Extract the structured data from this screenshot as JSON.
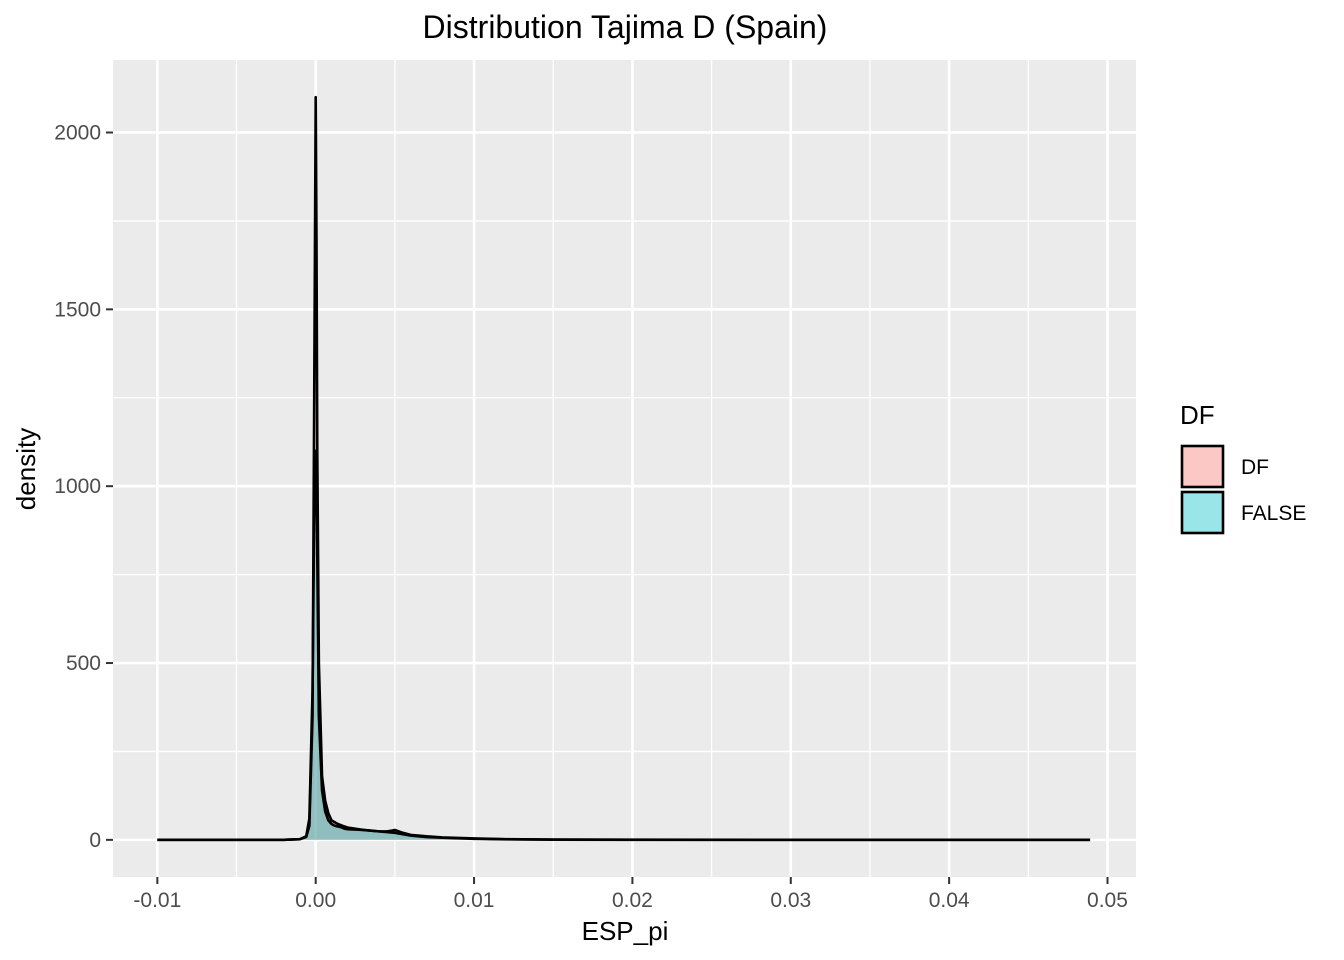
{
  "chart_data": {
    "type": "area",
    "title": "Distribution Tajima D (Spain)",
    "xlabel": "ESP_pi",
    "ylabel": "density",
    "xlim": [
      -0.0128,
      0.0518
    ],
    "ylim": [
      -105,
      2205
    ],
    "x_ticks": [
      -0.01,
      0.0,
      0.01,
      0.02,
      0.03,
      0.04,
      0.05
    ],
    "x_tick_labels": [
      "-0.01",
      "0.00",
      "0.01",
      "0.02",
      "0.03",
      "0.04",
      "0.05"
    ],
    "y_ticks": [
      0,
      500,
      1000,
      1500,
      2000
    ],
    "y_tick_labels": [
      "0",
      "500",
      "1000",
      "1500",
      "2000"
    ],
    "grid": true,
    "legend": {
      "title": "DF",
      "position": "right"
    },
    "series": [
      {
        "name": "DF",
        "fill": "#F8766D",
        "fill_opacity": 0.4,
        "x": [
          -0.01,
          -0.005,
          -0.002,
          -0.001,
          -0.0006,
          -0.0004,
          -0.0002,
          -0.0001,
          0.0,
          5e-05,
          0.0001,
          0.0002,
          0.0004,
          0.0006,
          0.0008,
          0.001,
          0.0014,
          0.0018,
          0.002,
          0.003,
          0.004,
          0.0045,
          0.005,
          0.0055,
          0.006,
          0.007,
          0.008,
          0.01,
          0.012,
          0.015,
          0.02,
          0.03,
          0.04,
          0.0489
        ],
        "y": [
          0,
          0,
          0,
          2,
          8,
          40,
          350,
          1200,
          2100,
          1700,
          1100,
          500,
          180,
          110,
          75,
          55,
          45,
          38,
          35,
          28,
          24,
          22,
          20,
          16,
          12,
          8,
          6,
          3,
          1.5,
          0.5,
          0.2,
          0.1,
          0,
          0
        ]
      },
      {
        "name": "FALSE",
        "fill": "#00BFC4",
        "fill_opacity": 0.4,
        "x": [
          -0.01,
          -0.005,
          -0.002,
          -0.001,
          -0.0006,
          -0.0004,
          -0.0002,
          -0.0001,
          0.0,
          5e-05,
          0.0001,
          0.0002,
          0.0004,
          0.0006,
          0.0008,
          0.001,
          0.0012,
          0.0014,
          0.0016,
          0.0018,
          0.002,
          0.0025,
          0.003,
          0.0035,
          0.004,
          0.0045,
          0.0048,
          0.005,
          0.0055,
          0.006,
          0.007,
          0.008,
          0.01,
          0.012,
          0.015,
          0.02,
          0.03,
          0.04,
          0.0489
        ],
        "y": [
          0,
          0,
          0,
          2,
          10,
          60,
          420,
          900,
          1100,
          1050,
          800,
          350,
          140,
          80,
          55,
          45,
          40,
          38,
          36,
          32,
          30,
          29,
          28,
          26,
          24,
          24,
          26,
          28,
          20,
          14,
          10,
          7,
          4,
          2,
          1,
          0.4,
          0.1,
          0,
          0
        ]
      }
    ]
  }
}
